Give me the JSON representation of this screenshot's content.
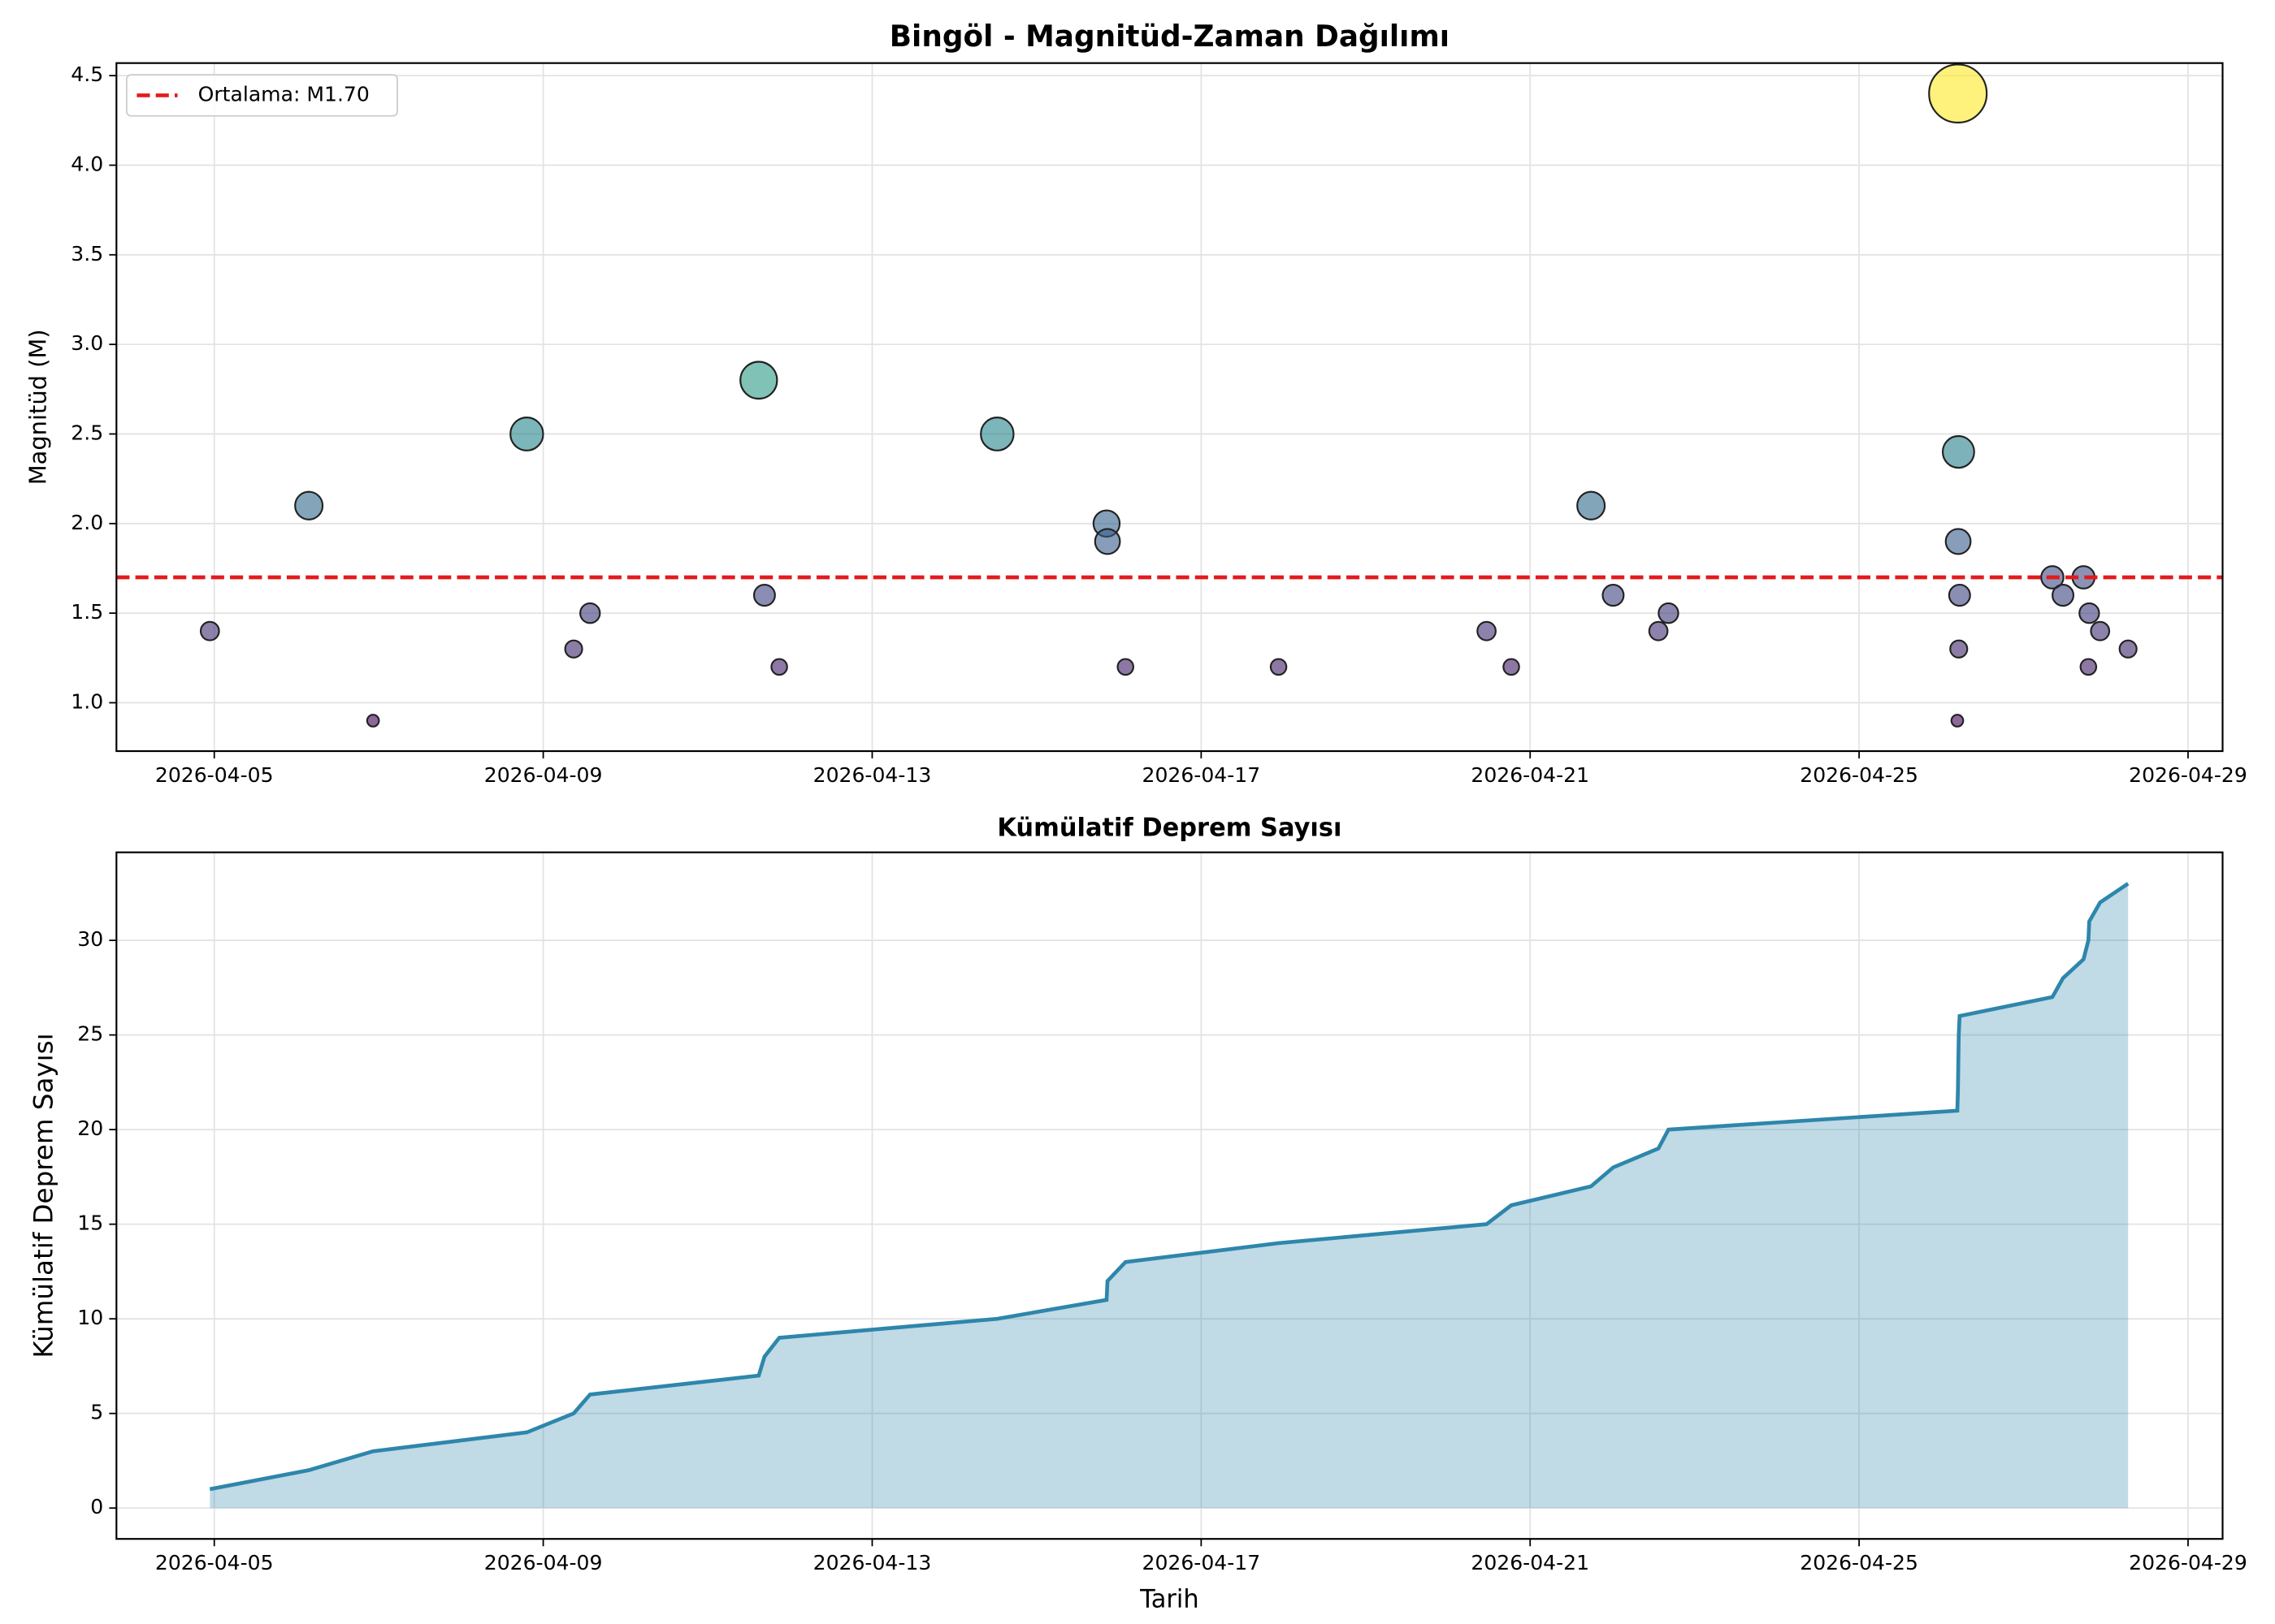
{
  "chart_data": [
    {
      "type": "scatter",
      "title": "Bingöl - Magnitüd-Zaman Dağılımı",
      "y_label": "Magnitüd (M)",
      "colormap": "viridis",
      "x": [
        "2026-04-04T22:43",
        "2026-04-06T03:36",
        "2026-04-06T22:20",
        "2026-04-08T19:12",
        "2026-04-09T08:53",
        "2026-04-09T13:40",
        "2026-04-11T14:53",
        "2026-04-11T16:34",
        "2026-04-11T20:53",
        "2026-04-14T12:29",
        "2026-04-15T20:24",
        "2026-04-15T20:40",
        "2026-04-16T01:55",
        "2026-04-17T22:35",
        "2026-04-20T11:17",
        "2026-04-20T18:30",
        "2026-04-21T17:46",
        "2026-04-22T00:14",
        "2026-04-22T13:26",
        "2026-04-22T16:22",
        "2026-04-26T04:40",
        "2026-04-26T04:50",
        "2026-04-26T04:55",
        "2026-04-26T05:00",
        "2026-04-26T05:05",
        "2026-04-26T05:20",
        "2026-04-27T08:24",
        "2026-04-27T11:30",
        "2026-04-27T17:30",
        "2026-04-27T18:55",
        "2026-04-27T19:10",
        "2026-04-27T22:20",
        "2026-04-28T06:30"
      ],
      "values": [
        1.4,
        2.1,
        0.9,
        2.5,
        1.3,
        1.5,
        2.8,
        1.6,
        1.2,
        2.5,
        2.0,
        1.9,
        1.2,
        1.2,
        1.4,
        1.2,
        2.1,
        1.6,
        1.4,
        1.5,
        0.9,
        4.4,
        1.9,
        2.4,
        1.3,
        1.6,
        1.7,
        1.6,
        1.7,
        1.2,
        1.5,
        1.4,
        1.3
      ],
      "mean_line": {
        "value": 1.7,
        "label": "Ortalama: M1.70",
        "color": "#e41a1c"
      },
      "xlim": [
        "2026-04-03T19:27",
        "2026-04-29T10:05"
      ],
      "xticks": [
        "2026-04-05",
        "2026-04-09",
        "2026-04-13",
        "2026-04-17",
        "2026-04-21",
        "2026-04-25",
        "2026-04-29"
      ],
      "ylim": [
        0.73,
        4.57
      ],
      "yticks": [
        {
          "value": 1,
          "label": "1.0"
        },
        {
          "value": 1.5,
          "label": "1.5"
        },
        {
          "value": 2,
          "label": "2.0"
        },
        {
          "value": 2.5,
          "label": "2.5"
        },
        {
          "value": 3,
          "label": "3.0"
        },
        {
          "value": 3.5,
          "label": "3.5"
        },
        {
          "value": 4,
          "label": "4.0"
        },
        {
          "value": 4.5,
          "label": "4.5"
        }
      ],
      "grid": true,
      "legend": "upper left"
    },
    {
      "type": "area",
      "title": "Kümülatif Deprem Sayısı",
      "y_label": "Kümülatif Deprem Sayısı",
      "x_label": "Tarih",
      "color": "#2e86ab",
      "x": [
        "2026-04-04T22:43",
        "2026-04-06T03:36",
        "2026-04-06T22:20",
        "2026-04-08T19:12",
        "2026-04-09T08:53",
        "2026-04-09T13:40",
        "2026-04-11T14:53",
        "2026-04-11T16:34",
        "2026-04-11T20:53",
        "2026-04-14T12:29",
        "2026-04-15T20:24",
        "2026-04-15T20:40",
        "2026-04-16T01:55",
        "2026-04-17T22:35",
        "2026-04-20T11:17",
        "2026-04-20T18:30",
        "2026-04-21T17:46",
        "2026-04-22T00:14",
        "2026-04-22T13:26",
        "2026-04-22T16:22",
        "2026-04-26T04:40",
        "2026-04-26T04:50",
        "2026-04-26T04:55",
        "2026-04-26T05:00",
        "2026-04-26T05:05",
        "2026-04-26T05:20",
        "2026-04-27T08:24",
        "2026-04-27T11:30",
        "2026-04-27T17:30",
        "2026-04-27T18:55",
        "2026-04-27T19:10",
        "2026-04-27T22:20",
        "2026-04-28T06:30"
      ],
      "values": [
        1,
        2,
        3,
        4,
        5,
        6,
        7,
        8,
        9,
        10,
        11,
        12,
        13,
        14,
        15,
        16,
        17,
        18,
        19,
        20,
        21,
        22,
        23,
        24,
        25,
        26,
        27,
        28,
        29,
        30,
        31,
        32,
        33
      ],
      "xlim": [
        "2026-04-03T19:27",
        "2026-04-29T10:05"
      ],
      "xticks": [
        "2026-04-05",
        "2026-04-09",
        "2026-04-13",
        "2026-04-17",
        "2026-04-21",
        "2026-04-25",
        "2026-04-29"
      ],
      "ylim": [
        -1.63,
        34.65
      ],
      "yticks": [
        0,
        5,
        10,
        15,
        20,
        25,
        30
      ],
      "grid": true
    }
  ]
}
